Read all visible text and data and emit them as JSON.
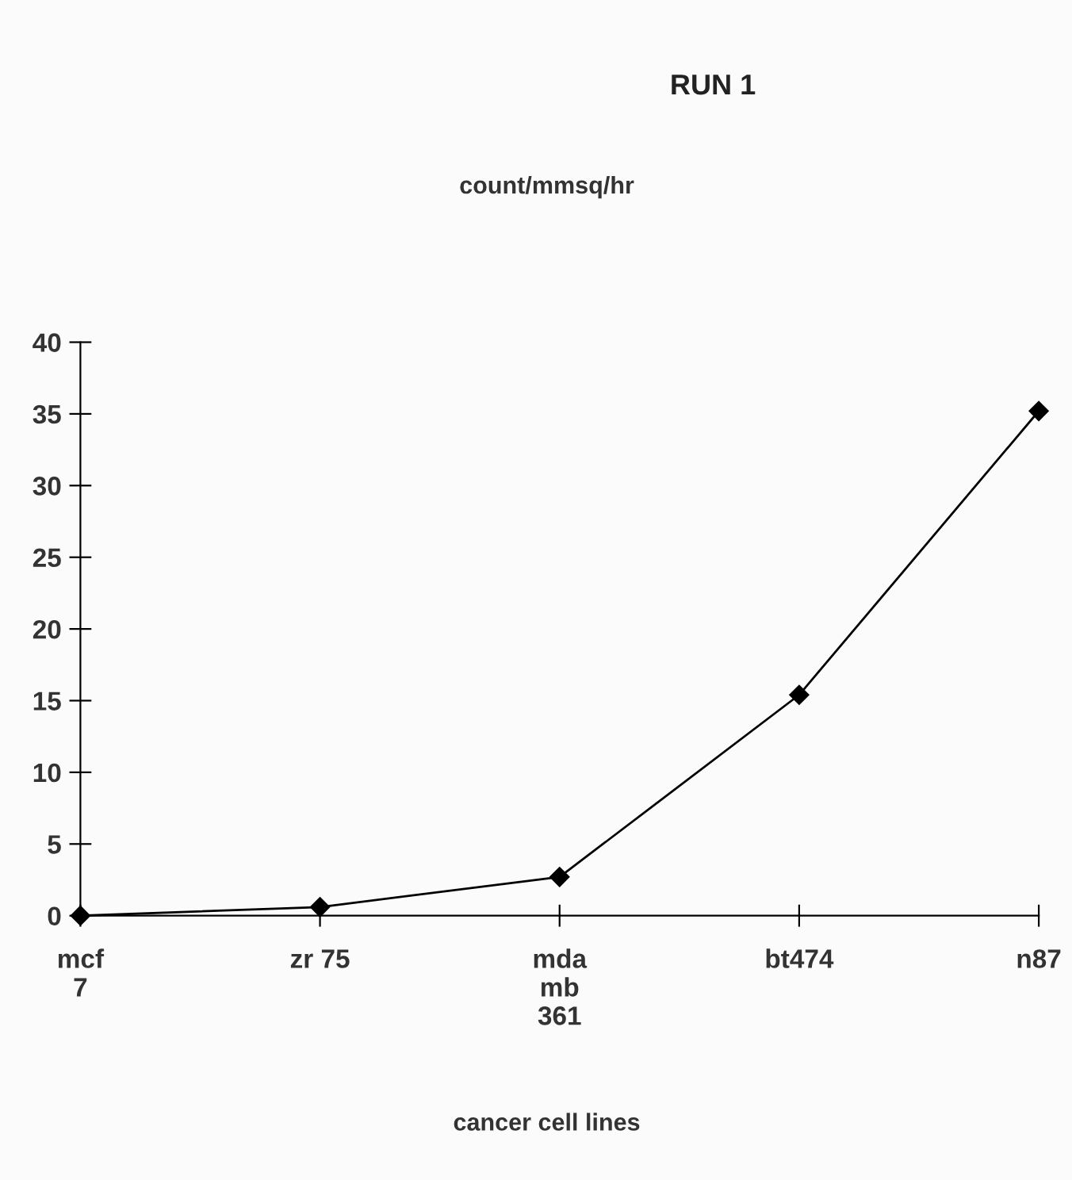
{
  "chart_data": {
    "type": "line",
    "title": "RUN 1",
    "subtitle": "count/mmsq/hr",
    "xlabel": "cancer cell lines",
    "categories": [
      "mcf\n7",
      "zr 75",
      "mda\nmb\n361",
      "bt474",
      "n87"
    ],
    "series": [
      {
        "color": "#000000",
        "values": [
          0,
          0.6,
          2.7,
          15.4,
          35.2
        ]
      }
    ],
    "ylim": [
      0,
      40
    ],
    "yticks": [
      0,
      5,
      10,
      15,
      20,
      25,
      30,
      35,
      40
    ],
    "grid": false,
    "legend": false,
    "marker": "diamond",
    "line_style": "solid"
  }
}
